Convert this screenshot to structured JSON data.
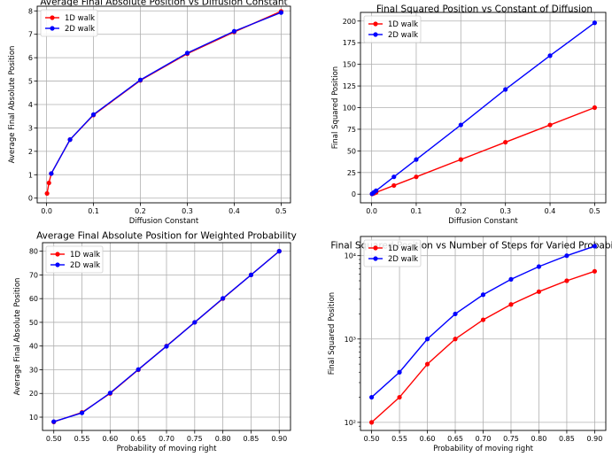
{
  "chart_data": [
    {
      "type": "line",
      "title": "Average Final Absolute Position vs Diffusion Constant",
      "xlabel": "Diffusion Constant",
      "ylabel": "Average Final Absolute Position",
      "xlim": [
        -0.02,
        0.52
      ],
      "ylim": [
        -0.2,
        8.2
      ],
      "xticks": [
        0.0,
        0.1,
        0.2,
        0.3,
        0.4,
        0.5
      ],
      "xtick_labels": [
        "0.0",
        "0.1",
        "0.2",
        "0.3",
        "0.4",
        "0.5"
      ],
      "yticks": [
        0,
        1,
        2,
        3,
        4,
        5,
        6,
        7,
        8
      ],
      "ytick_labels": [
        "0",
        "1",
        "2",
        "3",
        "4",
        "5",
        "6",
        "7",
        "8"
      ],
      "log_y": false,
      "grid": true,
      "legend": "top-left",
      "series": [
        {
          "name": "1D walk",
          "color": "#ff0000",
          "x": [
            0.001,
            0.005,
            0.01,
            0.05,
            0.1,
            0.2,
            0.3,
            0.4,
            0.5
          ],
          "y": [
            0.2,
            0.65,
            1.05,
            2.5,
            3.55,
            5.03,
            6.17,
            7.1,
            7.98
          ]
        },
        {
          "name": "2D walk",
          "color": "#0000ff",
          "x": [
            0.01,
            0.05,
            0.1,
            0.2,
            0.3,
            0.4,
            0.5
          ],
          "y": [
            1.05,
            2.5,
            3.57,
            5.05,
            6.2,
            7.13,
            7.93
          ]
        }
      ]
    },
    {
      "type": "line",
      "title": "Final Squared Position vs Constant of Diffusion",
      "xlabel": "Diffusion Constant",
      "ylabel": "Final Squared Position",
      "xlim": [
        -0.025,
        0.525
      ],
      "ylim": [
        -10,
        210
      ],
      "xticks": [
        0.0,
        0.1,
        0.2,
        0.3,
        0.4,
        0.5
      ],
      "xtick_labels": [
        "0.0",
        "0.1",
        "0.2",
        "0.3",
        "0.4",
        "0.5"
      ],
      "yticks": [
        0,
        25,
        50,
        75,
        100,
        125,
        150,
        175,
        200
      ],
      "ytick_labels": [
        "0",
        "25",
        "50",
        "75",
        "100",
        "125",
        "150",
        "175",
        "200"
      ],
      "log_y": false,
      "grid": true,
      "legend": "top-left",
      "series": [
        {
          "name": "1D walk",
          "color": "#ff0000",
          "x": [
            0.001,
            0.005,
            0.01,
            0.05,
            0.1,
            0.2,
            0.3,
            0.4,
            0.5
          ],
          "y": [
            0.2,
            1,
            2,
            10,
            20,
            40,
            60,
            80,
            100
          ]
        },
        {
          "name": "2D walk",
          "color": "#0000ff",
          "x": [
            0.001,
            0.005,
            0.01,
            0.05,
            0.1,
            0.2,
            0.3,
            0.4,
            0.5
          ],
          "y": [
            0.4,
            2,
            4,
            20,
            40,
            80,
            121,
            160,
            198
          ]
        }
      ]
    },
    {
      "type": "line",
      "title": "Average Final Absolute Position for Weighted Probability",
      "xlabel": "Probability of moving right",
      "ylabel": "Average Final Absolute Position",
      "xlim": [
        0.48,
        0.92
      ],
      "ylim": [
        4.4,
        83.6
      ],
      "xticks": [
        0.5,
        0.55,
        0.6,
        0.65,
        0.7,
        0.75,
        0.8,
        0.85,
        0.9
      ],
      "xtick_labels": [
        "0.50",
        "0.55",
        "0.60",
        "0.65",
        "0.70",
        "0.75",
        "0.80",
        "0.85",
        "0.90"
      ],
      "yticks": [
        10,
        20,
        30,
        40,
        50,
        60,
        70,
        80
      ],
      "ytick_labels": [
        "10",
        "20",
        "30",
        "40",
        "50",
        "60",
        "70",
        "80"
      ],
      "log_y": false,
      "grid": true,
      "legend": "top-left",
      "series": [
        {
          "name": "1D walk",
          "color": "#ff0000",
          "x": [
            0.5,
            0.55,
            0.6,
            0.65,
            0.7,
            0.75,
            0.8,
            0.85,
            0.9
          ],
          "y": [
            8,
            12,
            20,
            30,
            40,
            50,
            60,
            70,
            80
          ]
        },
        {
          "name": "2D walk",
          "color": "#0000ff",
          "x": [
            0.5,
            0.55,
            0.6,
            0.65,
            0.7,
            0.75,
            0.8,
            0.85,
            0.9
          ],
          "y": [
            8.1,
            11.8,
            20.2,
            30.1,
            39.9,
            50,
            60.1,
            70,
            80
          ]
        }
      ]
    },
    {
      "type": "line",
      "title": "Final Squared Position vs Number of Steps for Varied Probability",
      "xlabel": "Probability of moving right",
      "ylabel": "Final Squared Position",
      "xlim": [
        0.48,
        0.92
      ],
      "ylim": [
        80,
        17000
      ],
      "xticks": [
        0.5,
        0.55,
        0.6,
        0.65,
        0.7,
        0.75,
        0.8,
        0.85,
        0.9
      ],
      "xtick_labels": [
        "0.50",
        "0.55",
        "0.60",
        "0.65",
        "0.70",
        "0.75",
        "0.80",
        "0.85",
        "0.90"
      ],
      "yticks": [
        100,
        1000,
        10000
      ],
      "ytick_labels": [
        "10²",
        "10³",
        "10⁴"
      ],
      "log_y": true,
      "grid": true,
      "legend": "top-left",
      "series": [
        {
          "name": "1D walk",
          "color": "#ff0000",
          "x": [
            0.5,
            0.55,
            0.6,
            0.65,
            0.7,
            0.75,
            0.8,
            0.85,
            0.9
          ],
          "y": [
            100,
            200,
            500,
            1000,
            1700,
            2600,
            3700,
            5000,
            6500
          ]
        },
        {
          "name": "2D walk",
          "color": "#0000ff",
          "x": [
            0.5,
            0.55,
            0.6,
            0.65,
            0.7,
            0.75,
            0.8,
            0.85,
            0.9
          ],
          "y": [
            200,
            400,
            1000,
            2000,
            3400,
            5200,
            7400,
            10000,
            13000
          ]
        }
      ]
    }
  ]
}
